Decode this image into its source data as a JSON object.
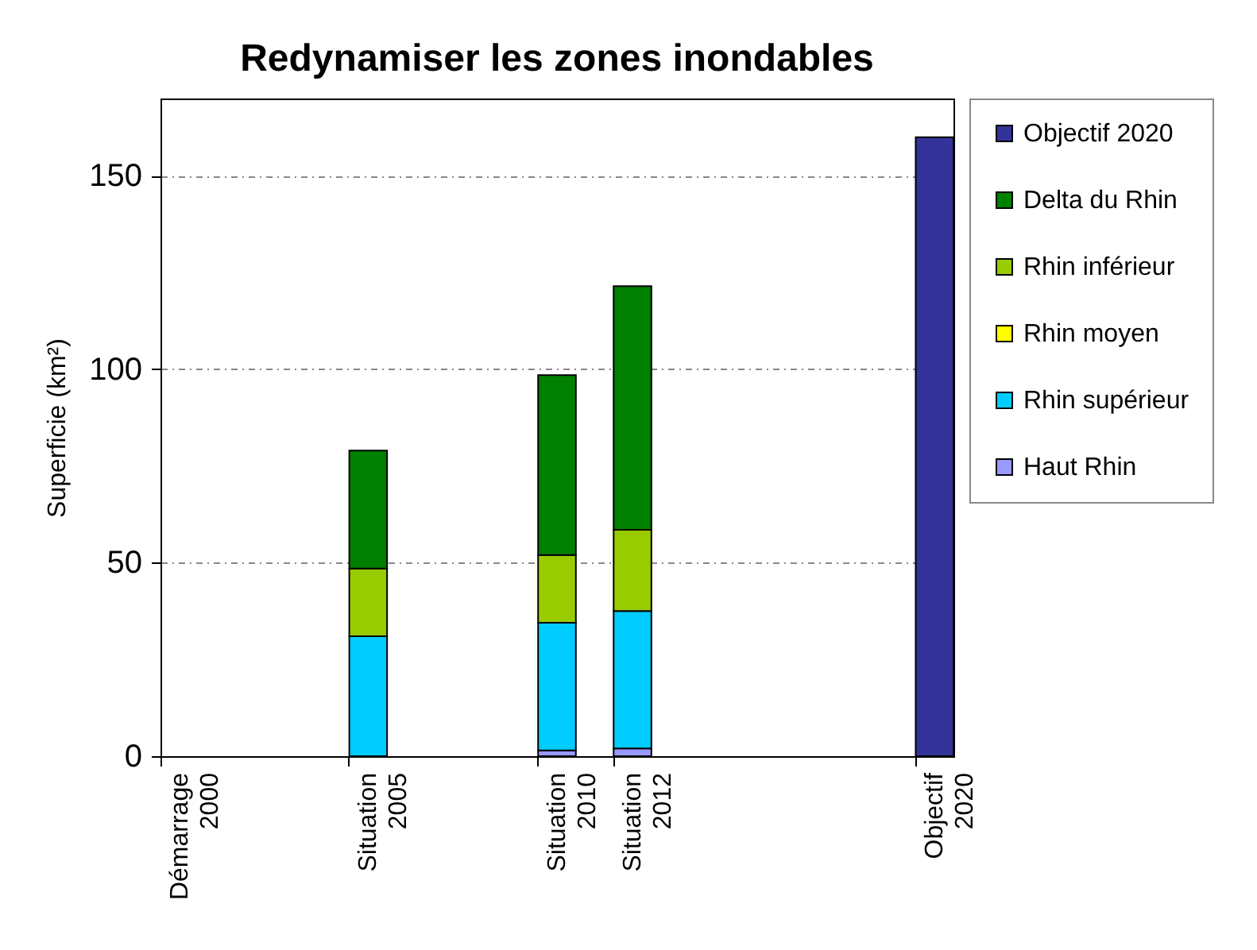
{
  "chart_data": {
    "type": "bar",
    "title": "Redynamiser les zones inondables",
    "ylabel": "Superficie (km²)",
    "stacked": true,
    "categories": [
      "Démarrage 2000",
      null,
      null,
      null,
      null,
      "Situation 2005",
      null,
      null,
      null,
      null,
      "Situation 2010",
      null,
      "Situation 2012",
      null,
      null,
      null,
      null,
      null,
      null,
      null,
      "Objectif 2020"
    ],
    "ylim": [
      0,
      170
    ],
    "yticks": [
      0,
      50,
      100,
      150
    ],
    "grid": "y",
    "legend": "right",
    "series": [
      {
        "name": "Haut Rhin",
        "color": "#9999ff",
        "values": [
          null,
          null,
          null,
          null,
          null,
          null,
          null,
          null,
          null,
          null,
          1.5,
          null,
          2,
          null,
          null,
          null,
          null,
          null,
          null,
          null,
          null
        ]
      },
      {
        "name": "Rhin supérieur",
        "color": "#00ccff",
        "values": [
          null,
          null,
          null,
          null,
          null,
          31,
          null,
          null,
          null,
          null,
          33,
          null,
          35.5,
          null,
          null,
          null,
          null,
          null,
          null,
          null,
          null
        ]
      },
      {
        "name": "Rhin moyen",
        "color": "#ffff00",
        "values": [
          null,
          null,
          null,
          null,
          null,
          null,
          null,
          null,
          null,
          null,
          null,
          null,
          null,
          null,
          null,
          null,
          null,
          null,
          null,
          null,
          null
        ]
      },
      {
        "name": "Rhin inférieur",
        "color": "#99cc00",
        "values": [
          null,
          null,
          null,
          null,
          null,
          17.5,
          null,
          null,
          null,
          null,
          17.5,
          null,
          21,
          null,
          null,
          null,
          null,
          null,
          null,
          null,
          null
        ]
      },
      {
        "name": "Delta du Rhin",
        "color": "#008000",
        "values": [
          null,
          null,
          null,
          null,
          null,
          30.5,
          null,
          null,
          null,
          null,
          46.5,
          null,
          63,
          null,
          null,
          null,
          null,
          null,
          null,
          null,
          null
        ]
      },
      {
        "name": "Objectif 2020",
        "color": "#333399",
        "values": [
          null,
          null,
          null,
          null,
          null,
          null,
          null,
          null,
          null,
          null,
          null,
          null,
          null,
          null,
          null,
          null,
          null,
          null,
          null,
          null,
          160
        ]
      }
    ]
  }
}
